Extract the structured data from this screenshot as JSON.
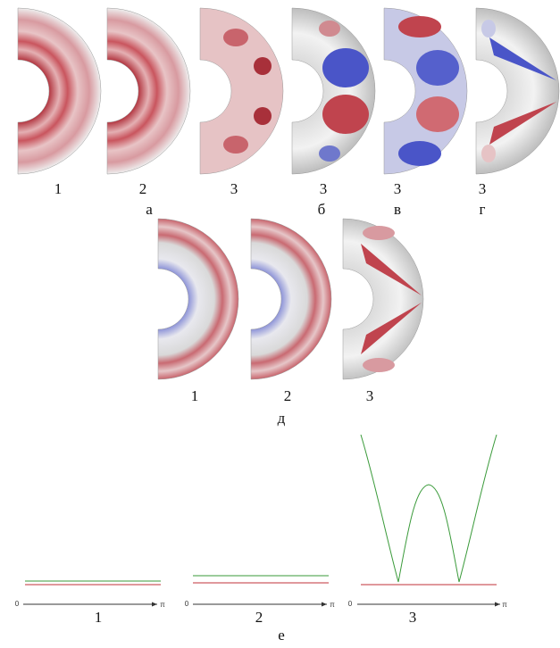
{
  "row_a": {
    "panel_labels": [
      "1",
      "2",
      "3"
    ],
    "group_label": "а"
  },
  "row_b": {
    "panel_label": "3",
    "group_label": "б"
  },
  "row_c": {
    "panel_label": "3",
    "group_label": "в"
  },
  "row_d": {
    "panel_label": "3",
    "group_label": "г"
  },
  "middle": {
    "panel_labels": [
      "1",
      "2",
      "3"
    ],
    "group_label": "д"
  },
  "bottom": {
    "plots": [
      {
        "label": "1",
        "x_start": "0",
        "x_end": "π"
      },
      {
        "label": "2",
        "x_start": "0",
        "x_end": "π"
      },
      {
        "label": "3",
        "x_start": "0",
        "x_end": "π"
      }
    ],
    "group_label": "е"
  }
}
